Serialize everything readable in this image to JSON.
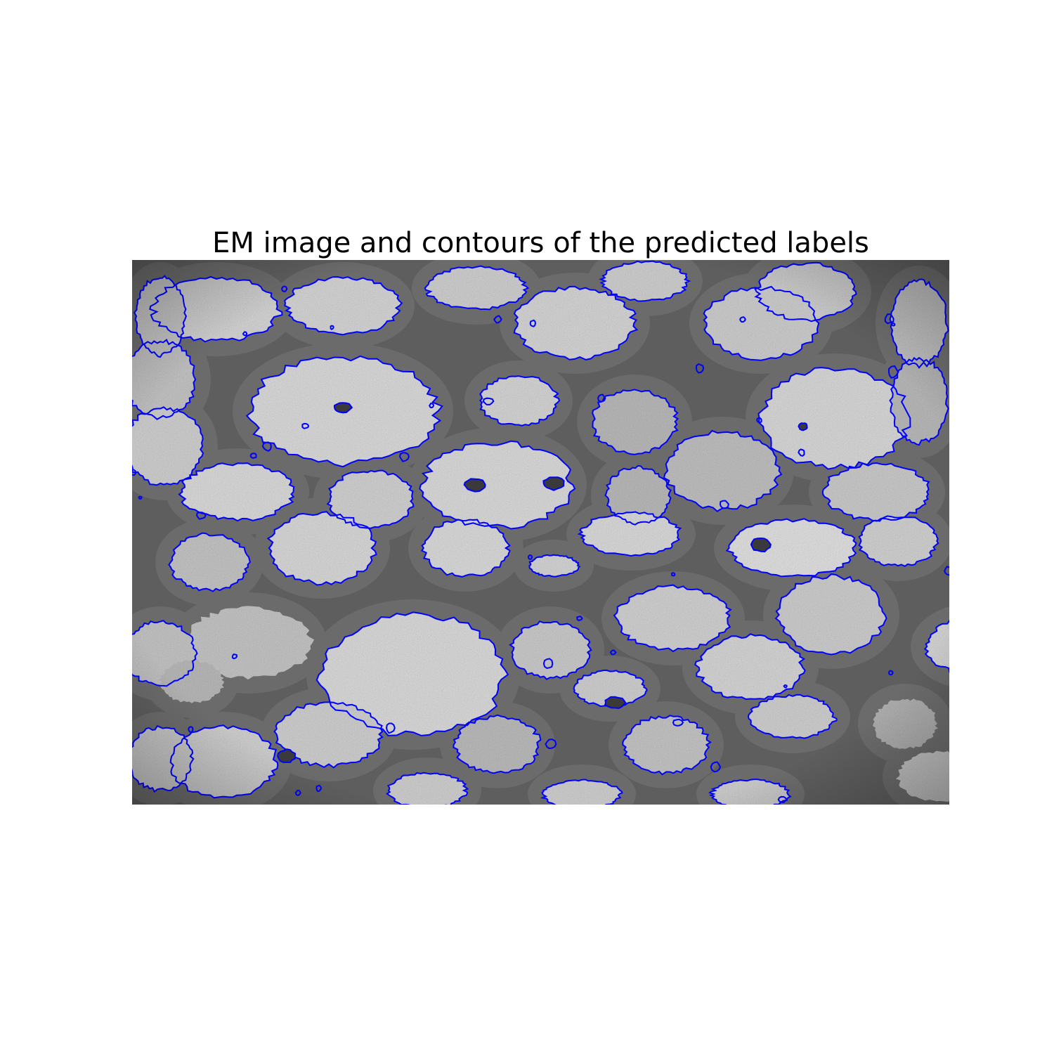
{
  "figure": {
    "title": "EM image and contours of the predicted labels"
  },
  "image": {
    "kind": "electron microscopy section of myelinated axons",
    "background_tone": "#5a5a5a",
    "membrane_tone": "#6b6b6b",
    "axon_tone": "#cfcfcf",
    "contour_color": "#0000ff"
  }
}
